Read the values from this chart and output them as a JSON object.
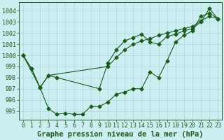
{
  "xlabel": "Graphe pression niveau de la mer (hPa)",
  "bg_color": "#cceef0",
  "grid_color": "#b0dde0",
  "line_color": "#1a5c1a",
  "ylim": [
    994.2,
    1004.8
  ],
  "xlim": [
    -0.5,
    23.5
  ],
  "yticks": [
    995,
    996,
    997,
    998,
    999,
    1000,
    1001,
    1002,
    1003,
    1004
  ],
  "xticks": [
    0,
    1,
    2,
    3,
    4,
    5,
    6,
    7,
    8,
    9,
    10,
    11,
    12,
    13,
    14,
    15,
    16,
    17,
    18,
    19,
    20,
    21,
    22,
    23
  ],
  "line1_x": [
    0,
    1,
    2,
    3,
    4,
    5,
    6,
    7,
    8,
    9,
    10,
    11,
    12,
    13,
    14,
    15,
    16,
    17,
    18,
    19,
    20,
    21,
    22,
    23
  ],
  "line1_y": [
    1000.0,
    998.8,
    997.1,
    995.2,
    994.7,
    994.8,
    994.7,
    994.7,
    995.4,
    995.4,
    995.8,
    996.5,
    996.7,
    997.0,
    997.0,
    998.5,
    998.0,
    999.5,
    1001.2,
    1001.8,
    1002.2,
    1003.5,
    1003.8,
    1003.3
  ],
  "line2_x": [
    0,
    2,
    3,
    10,
    11,
    12,
    13,
    14,
    15,
    16,
    17,
    18,
    19,
    20,
    21,
    22,
    23
  ],
  "line2_y": [
    1000.0,
    997.1,
    998.2,
    999.0,
    999.8,
    1000.5,
    1001.0,
    1001.3,
    1001.5,
    1001.8,
    1002.0,
    1002.2,
    1002.4,
    1002.6,
    1003.1,
    1003.5,
    1003.3
  ],
  "line3_x": [
    0,
    1,
    2,
    3,
    4,
    9,
    10,
    11,
    12,
    13,
    14,
    15,
    16,
    17,
    18,
    19,
    20,
    21,
    22,
    23
  ],
  "line3_y": [
    1000.0,
    998.8,
    997.1,
    998.2,
    998.0,
    997.0,
    999.3,
    1000.5,
    1001.3,
    1001.6,
    1001.9,
    1001.2,
    1001.0,
    1001.7,
    1001.9,
    1002.2,
    1002.4,
    1003.0,
    1004.2,
    1003.3
  ],
  "font_color": "#1a5c1a",
  "tick_fontsize": 6,
  "label_fontsize": 7.5
}
